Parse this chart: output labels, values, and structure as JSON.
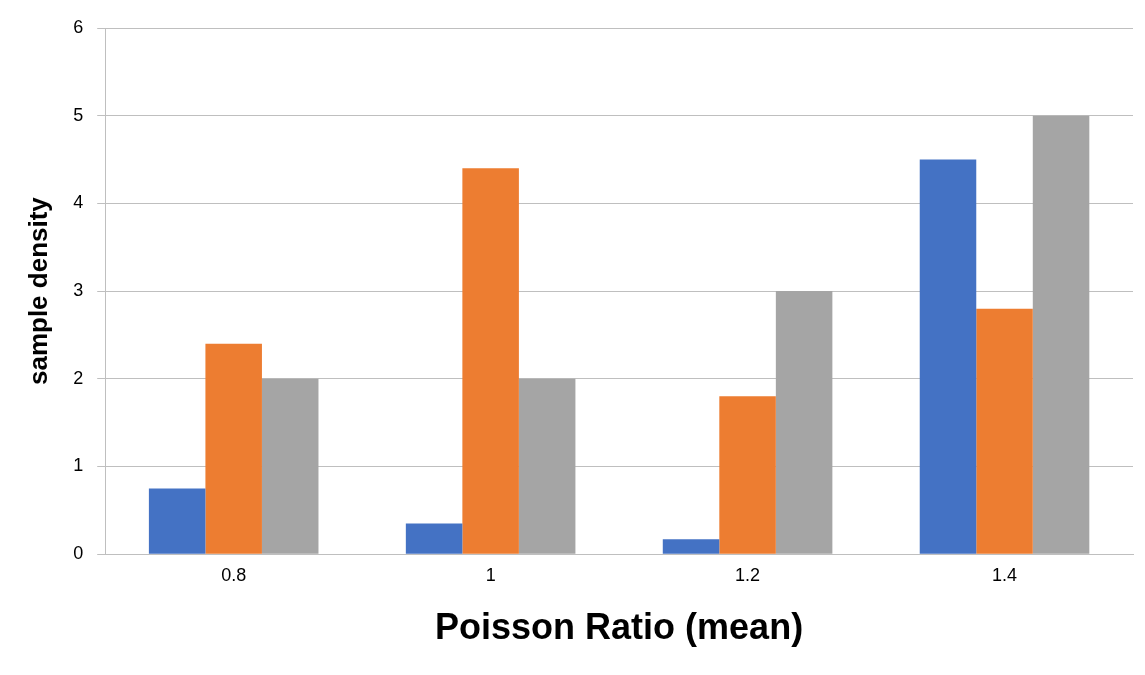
{
  "chart_data": {
    "type": "bar",
    "xlabel": "Poisson Ratio (mean)",
    "ylabel": "sample density",
    "categories": [
      "0.8",
      "1",
      "1.2",
      "1.4"
    ],
    "series": [
      {
        "color": "#4472c4",
        "values": [
          0.75,
          0.35,
          0.17,
          4.5
        ]
      },
      {
        "color": "#ed7d31",
        "values": [
          2.4,
          4.4,
          1.8,
          2.8
        ]
      },
      {
        "color": "#a5a5a5",
        "values": [
          2,
          2,
          3,
          5
        ]
      }
    ],
    "ylim": [
      0,
      6
    ],
    "yticks": [
      0,
      1,
      2,
      3,
      4,
      5,
      6
    ],
    "grid": "y",
    "legend": false
  }
}
